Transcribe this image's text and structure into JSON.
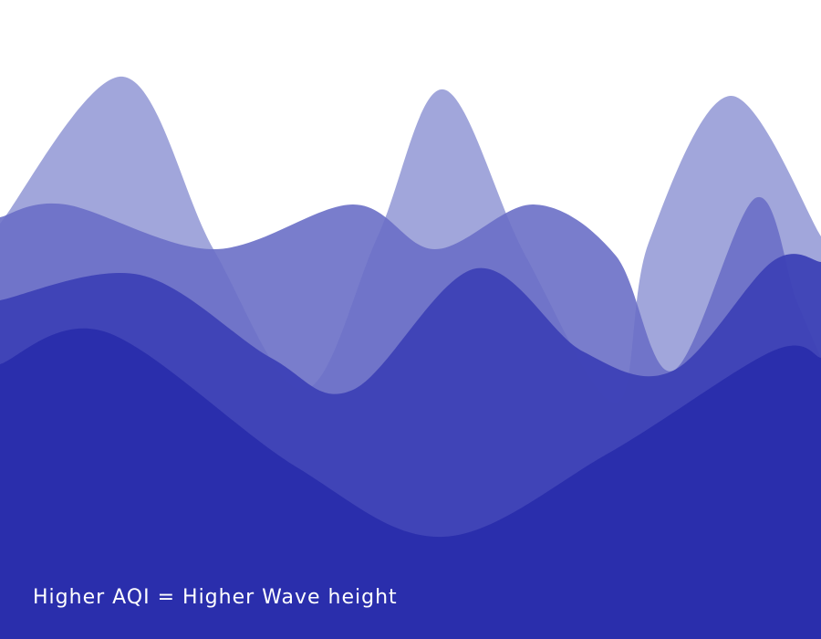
{
  "caption": "Higher AQI = Higher Wave height",
  "chart_data": {
    "type": "area",
    "title": "",
    "xlabel": "",
    "ylabel": "",
    "grid": false,
    "legend": "none",
    "notes": "Stacked/overlapping smooth wave areas; no axes or tick labels are printed. Values are relative wave heights.",
    "series": [
      {
        "color": "#9097d5",
        "opacity": 0.85,
        "values": [
          0.65,
          0.88,
          0.61,
          0.39,
          0.63,
          0.86,
          0.6,
          0.37,
          0.62,
          0.85,
          0.63
        ],
        "x": [
          0,
          0.15,
          0.26,
          0.37,
          0.46,
          0.54,
          0.64,
          0.75,
          0.79,
          0.89,
          1.0
        ]
      },
      {
        "color": "#6a6fc7",
        "opacity": 0.9,
        "values": [
          0.66,
          0.68,
          0.61,
          0.68,
          0.61,
          0.68,
          0.6,
          0.42,
          0.69,
          0.53,
          0.44
        ],
        "x": [
          0,
          0.08,
          0.26,
          0.43,
          0.53,
          0.65,
          0.75,
          0.82,
          0.92,
          0.97,
          1.0
        ]
      },
      {
        "color": "#3d41b6",
        "opacity": 0.95,
        "values": [
          0.53,
          0.57,
          0.44,
          0.39,
          0.58,
          0.45,
          0.42,
          0.59,
          0.59
        ],
        "x": [
          0,
          0.17,
          0.33,
          0.43,
          0.58,
          0.71,
          0.82,
          0.94,
          1.0
        ]
      },
      {
        "color": "#2a2eac",
        "opacity": 1,
        "values": [
          0.43,
          0.48,
          0.27,
          0.16,
          0.29,
          0.45,
          0.44
        ],
        "x": [
          0,
          0.13,
          0.36,
          0.54,
          0.74,
          0.94,
          1.0
        ]
      }
    ]
  }
}
